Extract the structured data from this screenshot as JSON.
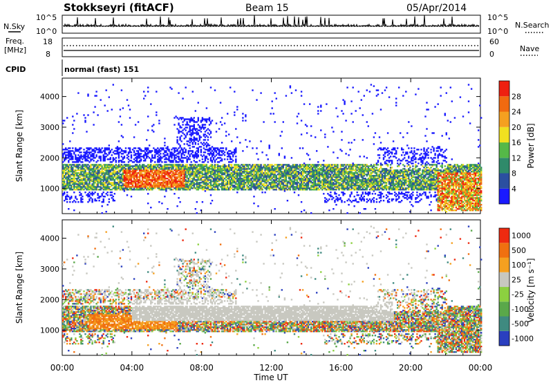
{
  "header": {
    "station": "Stokkseyri (fitACF)",
    "beam": "Beam 15",
    "date": "05/Apr/2014"
  },
  "panels": {
    "nsky_label": "N.Sky",
    "nsky_ticks": [
      "10^5",
      "10^0"
    ],
    "nsearch_label": "N.Search",
    "nsearch_ticks": [
      "10^5",
      "10^0"
    ],
    "freq_label": "Freq.",
    "freq_unit": "[MHz]",
    "freq_ticks": [
      "18",
      "8"
    ],
    "nave_label": "Nave",
    "nave_ticks": [
      "60",
      "0"
    ],
    "cpid_label": "CPID",
    "cpid_value": "normal (fast) 151"
  },
  "chart_data": [
    {
      "type": "heatmap",
      "title": "",
      "ylabel": "Slant Range [km]",
      "yticks": [
        1000,
        2000,
        3000,
        4000
      ],
      "ylim": [
        180,
        4600
      ],
      "xlabel": "Time UT",
      "xticks": [
        "00:00",
        "04:00",
        "08:00",
        "12:00",
        "16:00",
        "20:00",
        "00:00"
      ],
      "xlim_hours": [
        0,
        24
      ],
      "colorbar": {
        "label": "Power [dB]",
        "ticks": [
          "4",
          "8",
          "12",
          "16",
          "20",
          "24",
          "28"
        ],
        "colors": [
          "#1a1aff",
          "#2b4fa0",
          "#2f8a6a",
          "#55b848",
          "#f0e020",
          "#f5a020",
          "#f06a10",
          "#ee2010"
        ]
      },
      "features": [
        {
          "name": "main band",
          "start_hour": 0,
          "end_hour": 23,
          "range_km": [
            900,
            1800
          ],
          "dominant_power_db": [
            4,
            28
          ]
        },
        {
          "name": "strong echoes",
          "start_hour": 3.5,
          "end_hour": 7,
          "range_km": [
            1000,
            1600
          ],
          "power_db": [
            20,
            28
          ]
        },
        {
          "name": "late strong echoes",
          "start_hour": 21.5,
          "end_hour": 24,
          "range_km": [
            300,
            1500
          ],
          "power_db": [
            16,
            28
          ]
        },
        {
          "name": "high range echoes",
          "start_hour": 6.5,
          "end_hour": 8.5,
          "range_km": [
            2200,
            3300
          ],
          "power_db": [
            4,
            12
          ]
        }
      ]
    },
    {
      "type": "heatmap",
      "title": "",
      "ylabel": "Slant Range [km]",
      "yticks": [
        1000,
        2000,
        3000,
        4000
      ],
      "ylim": [
        180,
        4600
      ],
      "xlabel": "Time UT",
      "xticks": [
        "00:00",
        "04:00",
        "08:00",
        "12:00",
        "16:00",
        "20:00",
        "00:00"
      ],
      "xlim_hours": [
        0,
        24
      ],
      "colorbar": {
        "label": "Velocity [m s⁻¹]",
        "ticks": [
          "1000",
          "500",
          "100",
          "25",
          "-25",
          "-100",
          "-500",
          "-1000"
        ],
        "colors": [
          "#2a3fbf",
          "#3f8a80",
          "#5aa84a",
          "#8cd040",
          "#c8c8c0",
          "#f5a020",
          "#f07010",
          "#ee2a10"
        ]
      },
      "features": [
        {
          "name": "ground scatter band",
          "start_hour": 4,
          "end_hour": 19,
          "range_km": [
            1300,
            2000
          ],
          "velocity_ms": [
            -25,
            25
          ]
        },
        {
          "name": "negative velocity echoes",
          "start_hour": 1.5,
          "end_hour": 6.5,
          "range_km": [
            1000,
            1500
          ],
          "velocity_ms": [
            -500,
            -100
          ]
        },
        {
          "name": "late mixed echoes",
          "start_hour": 21,
          "end_hour": 24,
          "range_km": [
            300,
            1800
          ],
          "velocity_ms": [
            -1000,
            1000
          ]
        }
      ]
    }
  ]
}
